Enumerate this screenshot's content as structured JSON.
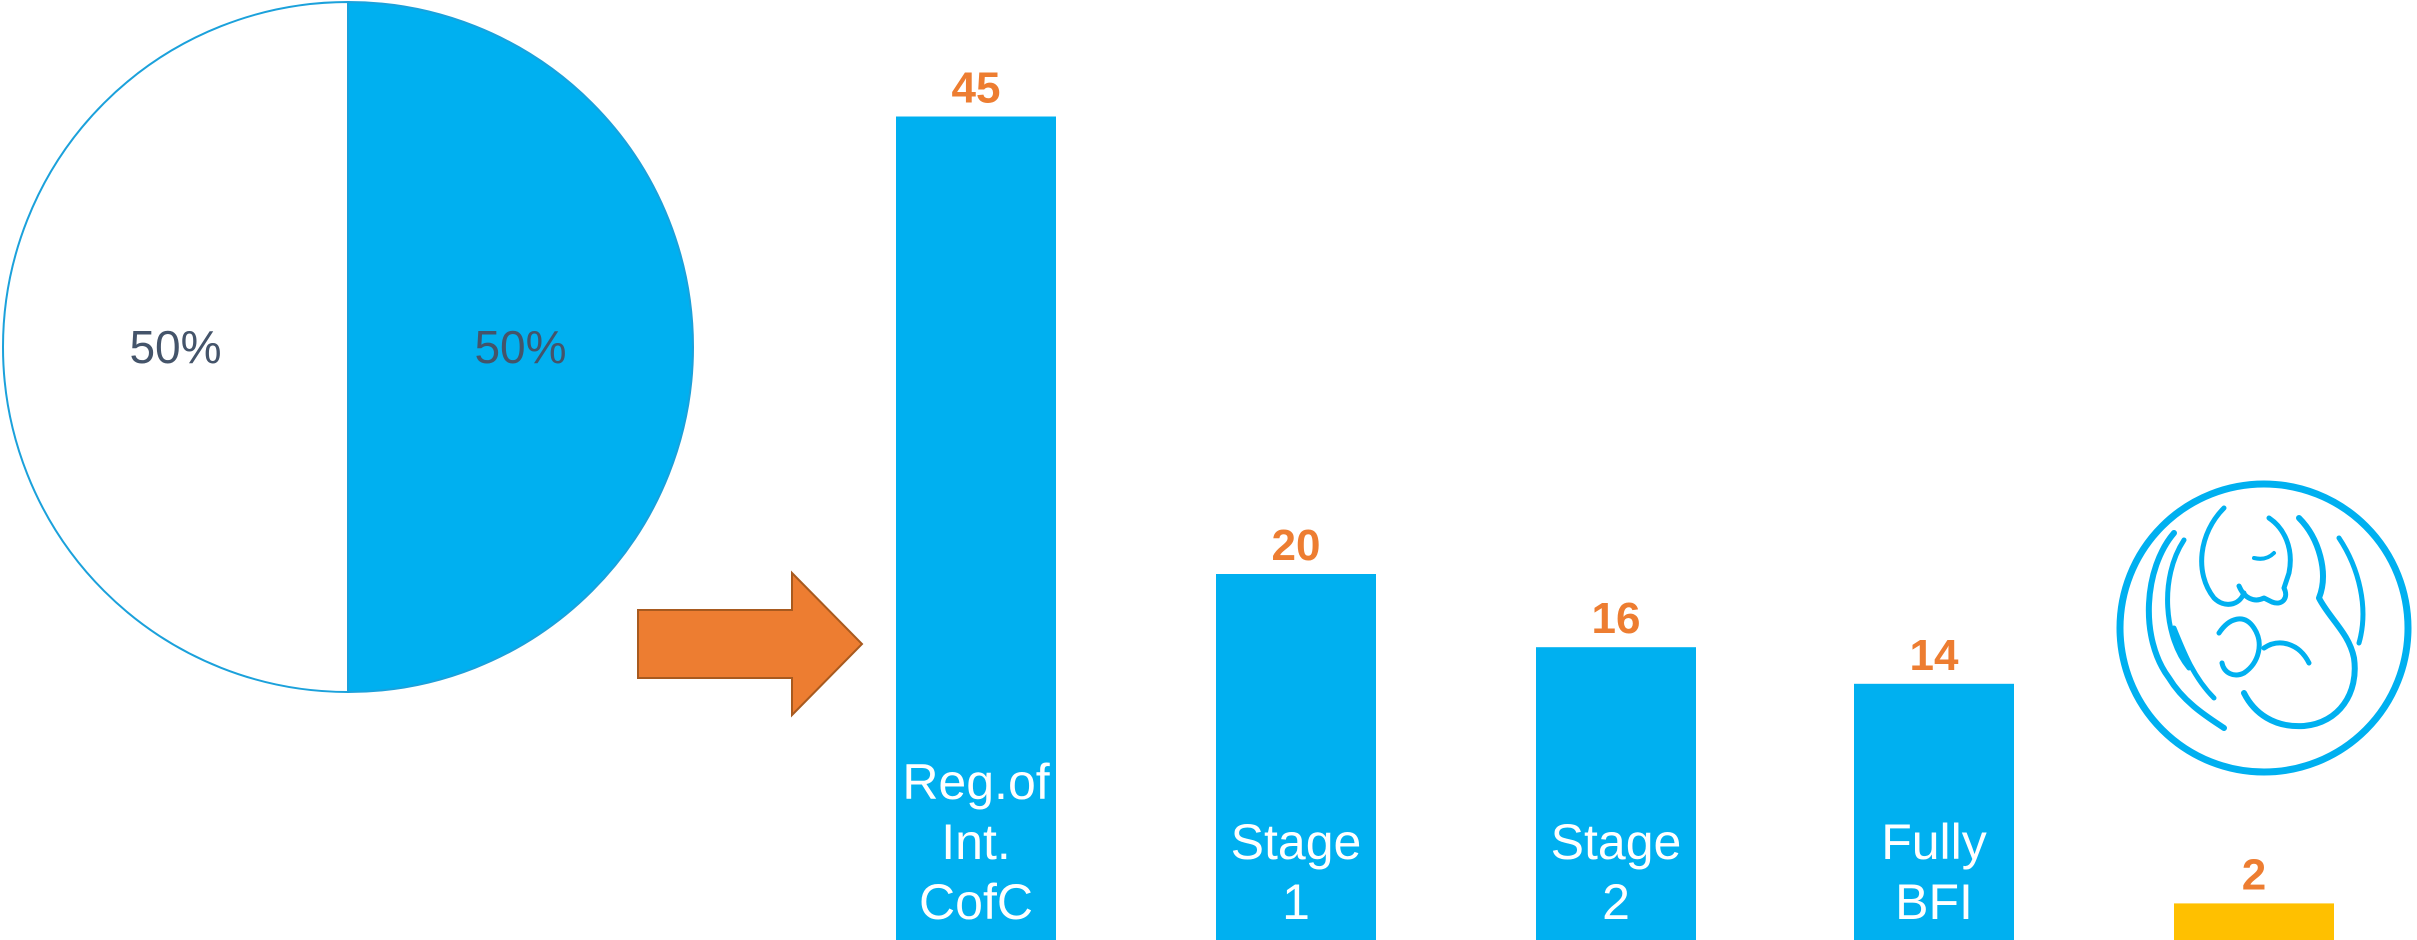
{
  "colors": {
    "accent": "#00b0f0",
    "value_label": "#ed7d31",
    "arrow": "#ed7d31",
    "arrow_border": "#a85a1f",
    "highlight_bar": "#ffc000",
    "pie_outline": "#1ba1db",
    "pie_label": "#44546a"
  },
  "icons": {
    "arrow": "right-arrow-icon",
    "logo": "mother-and-baby-logo"
  },
  "chart_data": [
    {
      "type": "pie",
      "slices": [
        {
          "label": "50%",
          "value": 50,
          "color": "#00b0f0"
        },
        {
          "label": "50%",
          "value": 50,
          "color": "#ffffff"
        }
      ]
    },
    {
      "type": "bar",
      "categories": [
        "Reg.of\nInt.\nCofC",
        "Stage\n1",
        "Stage\n2",
        "Fully\nBFI",
        ""
      ],
      "values": [
        45,
        20,
        16,
        14,
        2
      ],
      "value_labels": [
        "45",
        "20",
        "16",
        "14",
        "2"
      ],
      "bar_colors": [
        "#00b0f0",
        "#00b0f0",
        "#00b0f0",
        "#00b0f0",
        "#ffc000"
      ]
    }
  ]
}
